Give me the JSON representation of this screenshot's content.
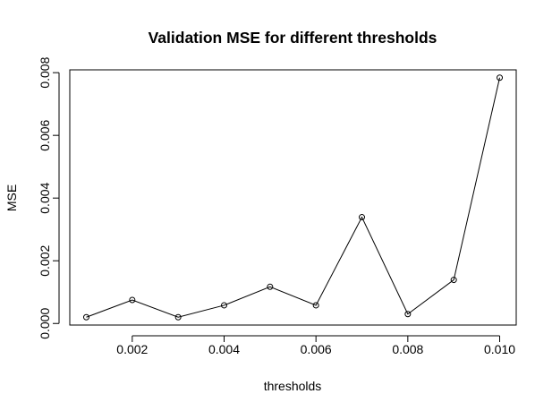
{
  "chart_data": {
    "type": "line",
    "title": "Validation MSE for different thresholds",
    "xlabel": "thresholds",
    "ylabel": "MSE",
    "x": [
      0.001,
      0.002,
      0.003,
      0.004,
      0.005,
      0.006,
      0.007,
      0.008,
      0.009,
      0.01
    ],
    "series": [
      {
        "values": [
          0.0002,
          0.00075,
          0.0002,
          0.00058,
          0.00117,
          0.00058,
          0.00339,
          0.0003,
          0.00139,
          0.00784
        ]
      }
    ],
    "xticks": [
      "0.002",
      "0.004",
      "0.006",
      "0.008",
      "0.010"
    ],
    "xtick_values": [
      0.002,
      0.004,
      0.006,
      0.008,
      0.01
    ],
    "yticks": [
      "0.000",
      "0.002",
      "0.004",
      "0.006",
      "0.008"
    ],
    "ytick_values": [
      0.0,
      0.002,
      0.004,
      0.006,
      0.008
    ],
    "xlim": [
      0.00064,
      0.01036
    ],
    "ylim": [
      -5e-05,
      0.00809
    ],
    "grid": false,
    "legend": "none",
    "marker": "open-circle",
    "line_color": "#000000"
  }
}
